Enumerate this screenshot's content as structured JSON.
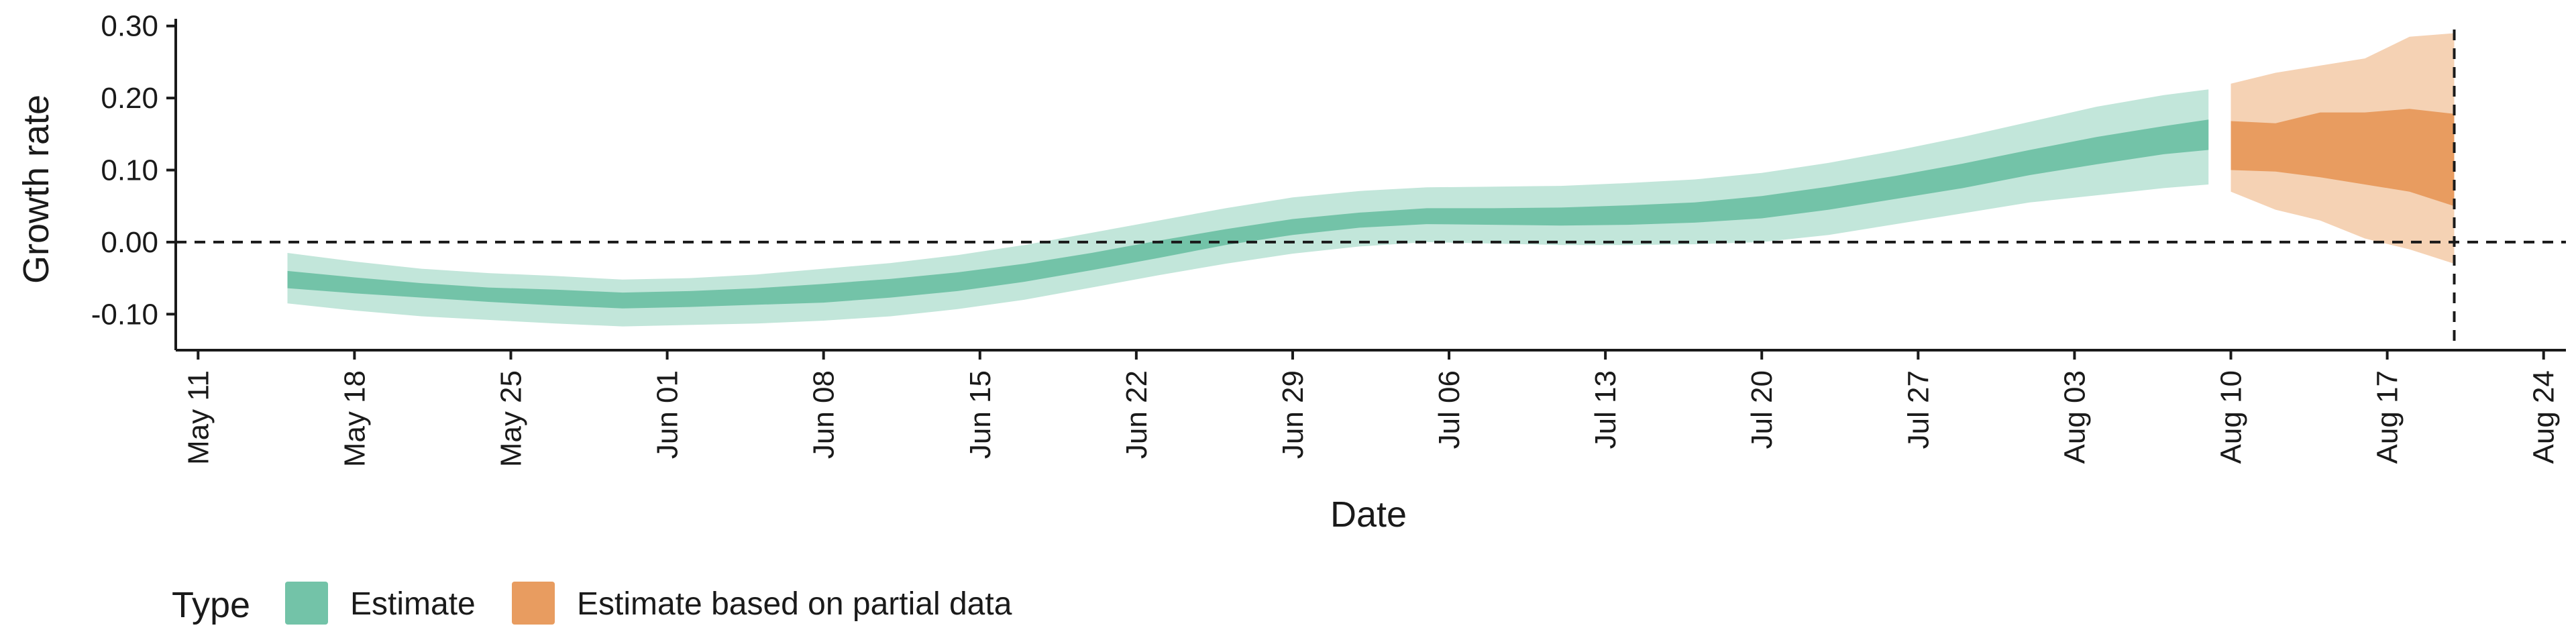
{
  "chart_data": {
    "type": "area",
    "title": "",
    "xlabel": "Date",
    "ylabel": "Growth rate",
    "ylim": [
      -0.15,
      0.31
    ],
    "y_ticks": [
      -0.1,
      0.0,
      0.1,
      0.2,
      0.3
    ],
    "y_tick_labels": [
      "-0.10",
      "0.00",
      "0.10",
      "0.20",
      "0.30"
    ],
    "x_range": [
      "2020-05-10",
      "2020-08-25"
    ],
    "x_ticks": [
      "2020-05-11",
      "2020-05-18",
      "2020-05-25",
      "2020-06-01",
      "2020-06-08",
      "2020-06-15",
      "2020-06-22",
      "2020-06-29",
      "2020-07-06",
      "2020-07-13",
      "2020-07-20",
      "2020-07-27",
      "2020-08-03",
      "2020-08-10",
      "2020-08-17",
      "2020-08-24"
    ],
    "x_tick_labels": [
      "May 11",
      "May 18",
      "May 25",
      "Jun 01",
      "Jun 08",
      "Jun 15",
      "Jun 22",
      "Jun 29",
      "Jul 06",
      "Jul 13",
      "Jul 20",
      "Jul 27",
      "Aug 03",
      "Aug 10",
      "Aug 17",
      "Aug 24"
    ],
    "x_tick_label_rotation": 90,
    "reference_lines": {
      "horizontal_y": 0.0,
      "vertical_date": "2020-08-20"
    },
    "grid": false,
    "legend": {
      "position": "bottom-left",
      "title": "Type",
      "entries": [
        {
          "label": "Estimate",
          "fill": "#73c3a8",
          "border": "#1b9e77"
        },
        {
          "label": "Estimate based on partial data",
          "fill": "#e89c60",
          "border": "#d95f02"
        }
      ]
    },
    "series": [
      {
        "name": "Estimate",
        "colors": {
          "outer": "#c2e6da",
          "inner": "#73c3a8"
        },
        "x": [
          "2020-05-15",
          "2020-05-18",
          "2020-05-21",
          "2020-05-24",
          "2020-05-27",
          "2020-05-30",
          "2020-06-02",
          "2020-06-05",
          "2020-06-08",
          "2020-06-11",
          "2020-06-14",
          "2020-06-17",
          "2020-06-20",
          "2020-06-23",
          "2020-06-26",
          "2020-06-29",
          "2020-07-02",
          "2020-07-05",
          "2020-07-08",
          "2020-07-11",
          "2020-07-14",
          "2020-07-17",
          "2020-07-20",
          "2020-07-23",
          "2020-07-26",
          "2020-07-29",
          "2020-08-01",
          "2020-08-04",
          "2020-08-07",
          "2020-08-09"
        ],
        "outer_lower": [
          -0.085,
          -0.095,
          -0.103,
          -0.108,
          -0.113,
          -0.117,
          -0.115,
          -0.113,
          -0.109,
          -0.103,
          -0.093,
          -0.08,
          -0.063,
          -0.046,
          -0.03,
          -0.016,
          -0.006,
          0.0,
          -0.002,
          -0.004,
          -0.004,
          -0.003,
          0.0,
          0.01,
          0.025,
          0.04,
          0.055,
          0.065,
          0.075,
          0.08
        ],
        "inner_lower": [
          -0.064,
          -0.071,
          -0.077,
          -0.083,
          -0.088,
          -0.092,
          -0.09,
          -0.087,
          -0.084,
          -0.077,
          -0.068,
          -0.055,
          -0.039,
          -0.022,
          -0.004,
          0.01,
          0.02,
          0.025,
          0.024,
          0.023,
          0.024,
          0.027,
          0.033,
          0.045,
          0.06,
          0.075,
          0.093,
          0.108,
          0.122,
          0.128
        ],
        "inner_upper": [
          -0.04,
          -0.049,
          -0.057,
          -0.063,
          -0.066,
          -0.07,
          -0.068,
          -0.064,
          -0.058,
          -0.051,
          -0.042,
          -0.03,
          -0.015,
          0.002,
          0.018,
          0.032,
          0.041,
          0.047,
          0.047,
          0.048,
          0.051,
          0.055,
          0.064,
          0.077,
          0.092,
          0.109,
          0.128,
          0.146,
          0.161,
          0.17
        ],
        "outer_upper": [
          -0.015,
          -0.027,
          -0.037,
          -0.043,
          -0.047,
          -0.052,
          -0.05,
          -0.045,
          -0.037,
          -0.029,
          -0.018,
          -0.004,
          0.013,
          0.03,
          0.047,
          0.062,
          0.071,
          0.076,
          0.077,
          0.078,
          0.082,
          0.087,
          0.096,
          0.11,
          0.127,
          0.146,
          0.167,
          0.188,
          0.204,
          0.212
        ]
      },
      {
        "name": "Estimate based on partial data",
        "colors": {
          "outer": "#f5d2b4",
          "inner": "#e89c60"
        },
        "x": [
          "2020-08-10",
          "2020-08-12",
          "2020-08-14",
          "2020-08-16",
          "2020-08-18",
          "2020-08-20"
        ],
        "outer_lower": [
          0.07,
          0.045,
          0.03,
          0.005,
          -0.01,
          -0.03
        ],
        "inner_lower": [
          0.1,
          0.098,
          0.09,
          0.08,
          0.07,
          0.05
        ],
        "inner_upper": [
          0.168,
          0.165,
          0.18,
          0.18,
          0.185,
          0.178
        ],
        "outer_upper": [
          0.22,
          0.235,
          0.245,
          0.255,
          0.285,
          0.29
        ]
      }
    ]
  }
}
